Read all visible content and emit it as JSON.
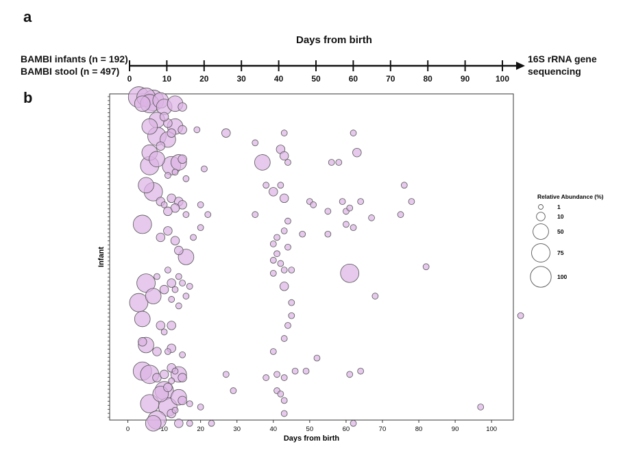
{
  "panel_a": {
    "label": "a",
    "title": "Days from birth",
    "cohort_infants": "BAMBI infants (n = 192)",
    "cohort_stool": "BAMBI stool (n = 497)",
    "sequencing_line1": "16S rRNA gene",
    "sequencing_line2": "sequencing",
    "ticks": [
      "0",
      "10",
      "20",
      "30",
      "40",
      "50",
      "60",
      "70",
      "80",
      "90",
      "100"
    ]
  },
  "panel_b": {
    "label": "b"
  },
  "chart_data": {
    "type": "scatter",
    "xlabel": "Days from birth",
    "ylabel": "Infant",
    "xlim": [
      -5,
      106
    ],
    "xticks": [
      0,
      10,
      20,
      30,
      40,
      50,
      60,
      70,
      80,
      90,
      100
    ],
    "ylim": [
      0,
      100
    ],
    "infant_ticks": 80,
    "size_legend": {
      "title": "Relative Abundance (%)",
      "entries": [
        {
          "label": "1",
          "value": 1
        },
        {
          "label": "10",
          "value": 10
        },
        {
          "label": "50",
          "value": 50
        },
        {
          "label": "75",
          "value": 75
        },
        {
          "label": "100",
          "value": 100
        }
      ]
    },
    "colors": {
      "fill": "#dcb4e4",
      "stroke": "#555555"
    },
    "points": [
      [
        3,
        99,
        100
      ],
      [
        5,
        99,
        75
      ],
      [
        7,
        98,
        100
      ],
      [
        4,
        97,
        50
      ],
      [
        6,
        97,
        75
      ],
      [
        9,
        98,
        50
      ],
      [
        10,
        96,
        50
      ],
      [
        13,
        97,
        50
      ],
      [
        15,
        96,
        10
      ],
      [
        8,
        92,
        50
      ],
      [
        6,
        90,
        50
      ],
      [
        11,
        91,
        10
      ],
      [
        10,
        93,
        10
      ],
      [
        12,
        88,
        10
      ],
      [
        13,
        90,
        50
      ],
      [
        15,
        89,
        10
      ],
      [
        19,
        89,
        3
      ],
      [
        8,
        87,
        75
      ],
      [
        11,
        86,
        50
      ],
      [
        6,
        82,
        50
      ],
      [
        9,
        84,
        10
      ],
      [
        27,
        88,
        10
      ],
      [
        37,
        79,
        50
      ],
      [
        42,
        83,
        10
      ],
      [
        43,
        81,
        10
      ],
      [
        62,
        88,
        3
      ],
      [
        63,
        82,
        10
      ],
      [
        35,
        85,
        3
      ],
      [
        43,
        88,
        3
      ],
      [
        44,
        79,
        3
      ],
      [
        56,
        79,
        3
      ],
      [
        58,
        79,
        3
      ],
      [
        6,
        78,
        75
      ],
      [
        8,
        80,
        50
      ],
      [
        12,
        78,
        75
      ],
      [
        14,
        79,
        50
      ],
      [
        15,
        80,
        10
      ],
      [
        13,
        76,
        3
      ],
      [
        11,
        75,
        3
      ],
      [
        16,
        74,
        3
      ],
      [
        21,
        77,
        3
      ],
      [
        5,
        72,
        50
      ],
      [
        7,
        70,
        75
      ],
      [
        9,
        67,
        10
      ],
      [
        12,
        68,
        10
      ],
      [
        14,
        67,
        10
      ],
      [
        15,
        66,
        10
      ],
      [
        13,
        65,
        10
      ],
      [
        11,
        64,
        10
      ],
      [
        10,
        66,
        3
      ],
      [
        16,
        63,
        3
      ],
      [
        20,
        66,
        3
      ],
      [
        40,
        70,
        10
      ],
      [
        38,
        72,
        3
      ],
      [
        42,
        72,
        3
      ],
      [
        43,
        68,
        10
      ],
      [
        50,
        67,
        3
      ],
      [
        51,
        66,
        3
      ],
      [
        55,
        64,
        3
      ],
      [
        59,
        67,
        3
      ],
      [
        60,
        64,
        3
      ],
      [
        61,
        65,
        3
      ],
      [
        64,
        67,
        3
      ],
      [
        35,
        63,
        3
      ],
      [
        22,
        63,
        3
      ],
      [
        76,
        72,
        3
      ],
      [
        78,
        67,
        3
      ],
      [
        75,
        63,
        3
      ],
      [
        67,
        62,
        3
      ],
      [
        4,
        60,
        75
      ],
      [
        9,
        56,
        10
      ],
      [
        11,
        58,
        10
      ],
      [
        13,
        55,
        10
      ],
      [
        14,
        52,
        10
      ],
      [
        16,
        50,
        50
      ],
      [
        18,
        56,
        3
      ],
      [
        20,
        59,
        3
      ],
      [
        44,
        61,
        3
      ],
      [
        43,
        58,
        3
      ],
      [
        41,
        56,
        3
      ],
      [
        48,
        57,
        3
      ],
      [
        40,
        54,
        3
      ],
      [
        44,
        53,
        3
      ],
      [
        41,
        51,
        3
      ],
      [
        40,
        49,
        3
      ],
      [
        42,
        48,
        3
      ],
      [
        43,
        46,
        3
      ],
      [
        45,
        46,
        3
      ],
      [
        40,
        45,
        3
      ],
      [
        43,
        41,
        10
      ],
      [
        55,
        57,
        3
      ],
      [
        60,
        60,
        3
      ],
      [
        62,
        59,
        3
      ],
      [
        61,
        45,
        75
      ],
      [
        82,
        47,
        3
      ],
      [
        68,
        38,
        3
      ],
      [
        5,
        42,
        75
      ],
      [
        7,
        38,
        50
      ],
      [
        10,
        40,
        10
      ],
      [
        12,
        42,
        10
      ],
      [
        3,
        36,
        75
      ],
      [
        8,
        44,
        3
      ],
      [
        13,
        40,
        3
      ],
      [
        11,
        46,
        3
      ],
      [
        14,
        44,
        3
      ],
      [
        15,
        42,
        3
      ],
      [
        17,
        41,
        3
      ],
      [
        16,
        38,
        3
      ],
      [
        12,
        37,
        3
      ],
      [
        14,
        35,
        3
      ],
      [
        45,
        36,
        3
      ],
      [
        45,
        32,
        3
      ],
      [
        44,
        29,
        3
      ],
      [
        4,
        31,
        50
      ],
      [
        9,
        29,
        10
      ],
      [
        12,
        29,
        10
      ],
      [
        10,
        27,
        3
      ],
      [
        43,
        25,
        3
      ],
      [
        4,
        24,
        10
      ],
      [
        5,
        23,
        50
      ],
      [
        8,
        21,
        10
      ],
      [
        11,
        21,
        3
      ],
      [
        12,
        22,
        10
      ],
      [
        15,
        20,
        3
      ],
      [
        40,
        21,
        3
      ],
      [
        52,
        19,
        3
      ],
      [
        4,
        15,
        75
      ],
      [
        6,
        14,
        75
      ],
      [
        8,
        13,
        10
      ],
      [
        10,
        14,
        10
      ],
      [
        12,
        16,
        10
      ],
      [
        13,
        15,
        3
      ],
      [
        14,
        14,
        50
      ],
      [
        15,
        13,
        10
      ],
      [
        12,
        12,
        3
      ],
      [
        11,
        10,
        10
      ],
      [
        27,
        14,
        3
      ],
      [
        38,
        13,
        3
      ],
      [
        41,
        14,
        3
      ],
      [
        43,
        13,
        3
      ],
      [
        46,
        15,
        3
      ],
      [
        49,
        15,
        3
      ],
      [
        61,
        14,
        3
      ],
      [
        64,
        15,
        3
      ],
      [
        10,
        9,
        75
      ],
      [
        9,
        8,
        50
      ],
      [
        14,
        7,
        50
      ],
      [
        6,
        5,
        75
      ],
      [
        11,
        4,
        75
      ],
      [
        15,
        6,
        10
      ],
      [
        17,
        5,
        3
      ],
      [
        20,
        4,
        3
      ],
      [
        29,
        9,
        3
      ],
      [
        41,
        9,
        3
      ],
      [
        42,
        8,
        3
      ],
      [
        43,
        6,
        3
      ],
      [
        13,
        3,
        3
      ],
      [
        12,
        2,
        10
      ],
      [
        43,
        2,
        3
      ],
      [
        8,
        0,
        75
      ],
      [
        7,
        -1,
        50
      ],
      [
        14,
        -1,
        10
      ],
      [
        17,
        -1,
        3
      ],
      [
        23,
        -1,
        3
      ],
      [
        62,
        -1,
        3
      ],
      [
        97,
        4,
        3
      ],
      [
        108,
        32,
        3
      ]
    ]
  }
}
